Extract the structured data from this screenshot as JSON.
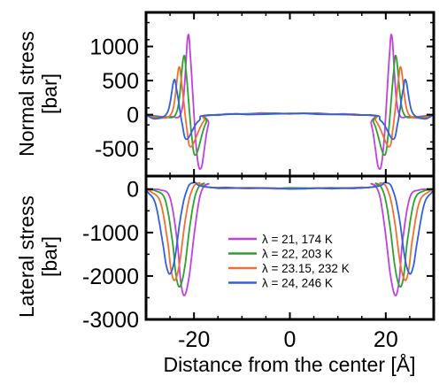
{
  "chart_data": {
    "type": "line",
    "xlabel": "Distance from the center [Å]",
    "xlim": [
      -30,
      30
    ],
    "xticks": [
      -20,
      0,
      20
    ],
    "legend_position": "lower-right",
    "panels": [
      {
        "name": "top",
        "ylabel_line1": "Normal stress",
        "ylabel_line2": "[bar]",
        "ylim": [
          -900,
          1500
        ],
        "yticks": [
          1000,
          500,
          0,
          -500
        ],
        "series": [
          {
            "name": "λ = 21, 174 K",
            "color": "#c040e0",
            "x": [
              -30,
              -25,
              -22.5,
              -21.3,
              -20.7,
              -19.5,
              -18.5,
              -17,
              -15,
              15,
              17,
              18.5,
              19.5,
              20.7,
              21.3,
              22.5,
              25,
              30
            ],
            "y": [
              0,
              -30,
              80,
              1140,
              800,
              -500,
              -780,
              -150,
              0,
              0,
              -150,
              -780,
              -500,
              800,
              1140,
              80,
              -30,
              0
            ]
          },
          {
            "name": "λ = 22, 203 K",
            "color": "#2ea02e",
            "x": [
              -30,
              -26,
              -23.5,
              -22.2,
              -21.6,
              -20.5,
              -19.6,
              -17.5,
              -15,
              15,
              17.5,
              19.6,
              20.5,
              21.6,
              22.2,
              23.5,
              26,
              30
            ],
            "y": [
              0,
              -40,
              60,
              840,
              600,
              -300,
              -590,
              -120,
              0,
              0,
              -120,
              -590,
              -300,
              600,
              840,
              60,
              -40,
              0
            ]
          },
          {
            "name": "λ = 23.15, 232 K",
            "color": "#f07030",
            "x": [
              -30,
              -27,
              -24.5,
              -23.2,
              -22.6,
              -21.5,
              -20.6,
              -18,
              -15,
              15,
              18,
              20.6,
              21.5,
              22.6,
              23.2,
              24.5,
              27,
              30
            ],
            "y": [
              0,
              -50,
              50,
              680,
              480,
              -200,
              -470,
              -100,
              0,
              0,
              -100,
              -470,
              -200,
              480,
              680,
              50,
              -50,
              0
            ]
          },
          {
            "name": "λ = 24, 246 K",
            "color": "#3060e0",
            "x": [
              -30,
              -28,
              -25.5,
              -24.2,
              -23.6,
              -22.5,
              -21.5,
              -19,
              -15,
              15,
              19,
              21.5,
              22.5,
              23.6,
              24.2,
              25.5,
              28,
              30
            ],
            "y": [
              0,
              -60,
              40,
              500,
              360,
              -120,
              -360,
              -90,
              0,
              0,
              -90,
              -360,
              -120,
              360,
              500,
              40,
              -60,
              0
            ]
          }
        ]
      },
      {
        "name": "bottom",
        "ylabel_line1": "Lateral stress",
        "ylabel_line2": "[bar]",
        "ylim": [
          -3000,
          300
        ],
        "yticks": [
          0,
          -1000,
          -2000,
          -3000
        ],
        "series": [
          {
            "name": "λ = 21, 174 K",
            "color": "#c040e0",
            "x": [
              -30,
              -27,
              -25,
              -23.5,
              -22.8,
              -22,
              -21,
              -19.8,
              -18.6,
              -17,
              -15,
              15,
              17,
              18.6,
              19.8,
              21,
              22,
              22.8,
              23.5,
              25,
              27,
              30
            ],
            "y": [
              -10,
              -20,
              -200,
              -1200,
              -2100,
              -2450,
              -2000,
              -900,
              -100,
              120,
              30,
              30,
              120,
              -100,
              -900,
              -2000,
              -2450,
              -2100,
              -1200,
              -200,
              -20,
              -10
            ]
          },
          {
            "name": "λ = 22, 203 K",
            "color": "#2ea02e",
            "x": [
              -30,
              -28,
              -26,
              -24.5,
              -23.8,
              -23,
              -22,
              -20.8,
              -19.6,
              -18,
              -15,
              15,
              18,
              19.6,
              20.8,
              22,
              23,
              23.8,
              24.5,
              26,
              28,
              30
            ],
            "y": [
              -20,
              -40,
              -250,
              -1200,
              -1950,
              -2250,
              -1850,
              -800,
              -100,
              130,
              30,
              30,
              130,
              -100,
              -800,
              -1850,
              -2250,
              -1950,
              -1200,
              -250,
              -40,
              -20
            ]
          },
          {
            "name": "λ = 23.15, 232 K",
            "color": "#f07030",
            "x": [
              -30,
              -29,
              -27,
              -25.5,
              -24.8,
              -24,
              -23,
              -21.8,
              -20.6,
              -19,
              -15,
              15,
              19,
              20.6,
              21.8,
              23,
              24,
              24.8,
              25.5,
              27,
              29,
              30
            ],
            "y": [
              -40,
              -60,
              -300,
              -1200,
              -1850,
              -2100,
              -1700,
              -700,
              -80,
              140,
              30,
              30,
              140,
              -80,
              -700,
              -1700,
              -2100,
              -1850,
              -1200,
              -300,
              -60,
              -40
            ]
          },
          {
            "name": "λ = 24, 246 K",
            "color": "#3060e0",
            "x": [
              -30,
              -29.5,
              -28,
              -26.5,
              -25.8,
              -25,
              -24,
              -22.8,
              -21.6,
              -20,
              -15,
              15,
              20,
              21.6,
              22.8,
              24,
              25,
              25.8,
              26.5,
              28,
              29.5,
              30
            ],
            "y": [
              -60,
              -90,
              -350,
              -1250,
              -1750,
              -1950,
              -1600,
              -650,
              -60,
              150,
              30,
              30,
              150,
              -60,
              -650,
              -1600,
              -1950,
              -1750,
              -1250,
              -350,
              -90,
              -60
            ]
          }
        ]
      }
    ]
  }
}
